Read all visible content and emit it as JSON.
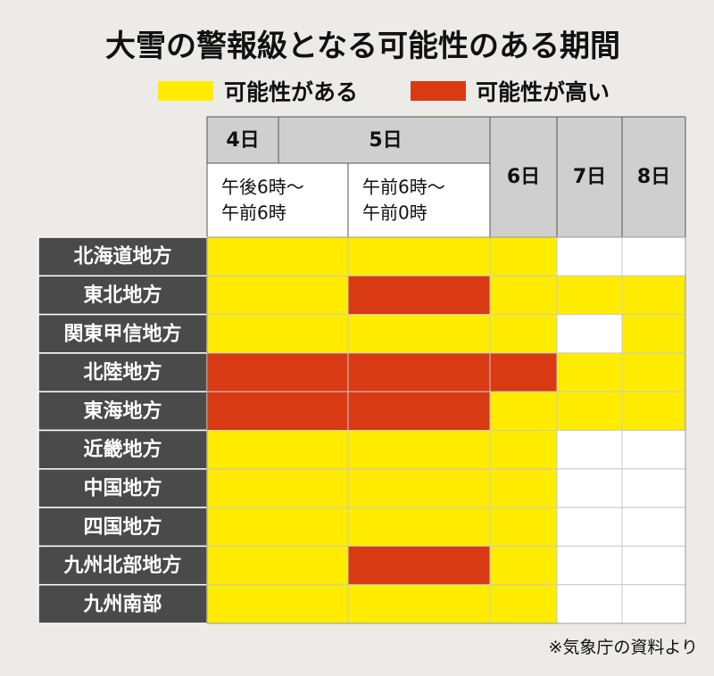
{
  "title": "大雪の警報級となる可能性のある期間",
  "legend": [
    {
      "label": "可能性がある",
      "color": "#ffec00"
    },
    {
      "label": "可能性が高い",
      "color": "#d83a14"
    }
  ],
  "source": "※気象庁の資料より",
  "chart_data": {
    "type": "table",
    "day_headers": [
      "4日",
      "5日",
      "6日",
      "7日",
      "8日"
    ],
    "period_labels": [
      [
        "午後6時〜",
        "午前6時"
      ],
      [
        "午前6時〜",
        "午前0時"
      ]
    ],
    "columns": [
      "4日 午後6時〜午前6時",
      "5日 午前6時〜午前0時",
      "6日",
      "7日",
      "8日"
    ],
    "levels": {
      "0": "なし",
      "1": "可能性がある",
      "2": "可能性が高い"
    },
    "rows": [
      {
        "region": "北海道地方",
        "values": [
          1,
          1,
          1,
          0,
          0
        ]
      },
      {
        "region": "東北地方",
        "values": [
          1,
          2,
          1,
          1,
          1
        ]
      },
      {
        "region": "関東甲信地方",
        "values": [
          1,
          1,
          1,
          0,
          1
        ]
      },
      {
        "region": "北陸地方",
        "values": [
          2,
          2,
          2,
          1,
          1
        ]
      },
      {
        "region": "東海地方",
        "values": [
          2,
          2,
          1,
          1,
          1
        ]
      },
      {
        "region": "近畿地方",
        "values": [
          1,
          1,
          1,
          0,
          0
        ]
      },
      {
        "region": "中国地方",
        "values": [
          1,
          1,
          1,
          0,
          0
        ]
      },
      {
        "region": "四国地方",
        "values": [
          1,
          1,
          1,
          0,
          0
        ]
      },
      {
        "region": "九州北部地方",
        "values": [
          1,
          2,
          1,
          0,
          0
        ]
      },
      {
        "region": "九州南部",
        "values": [
          1,
          1,
          1,
          0,
          0
        ]
      }
    ]
  }
}
